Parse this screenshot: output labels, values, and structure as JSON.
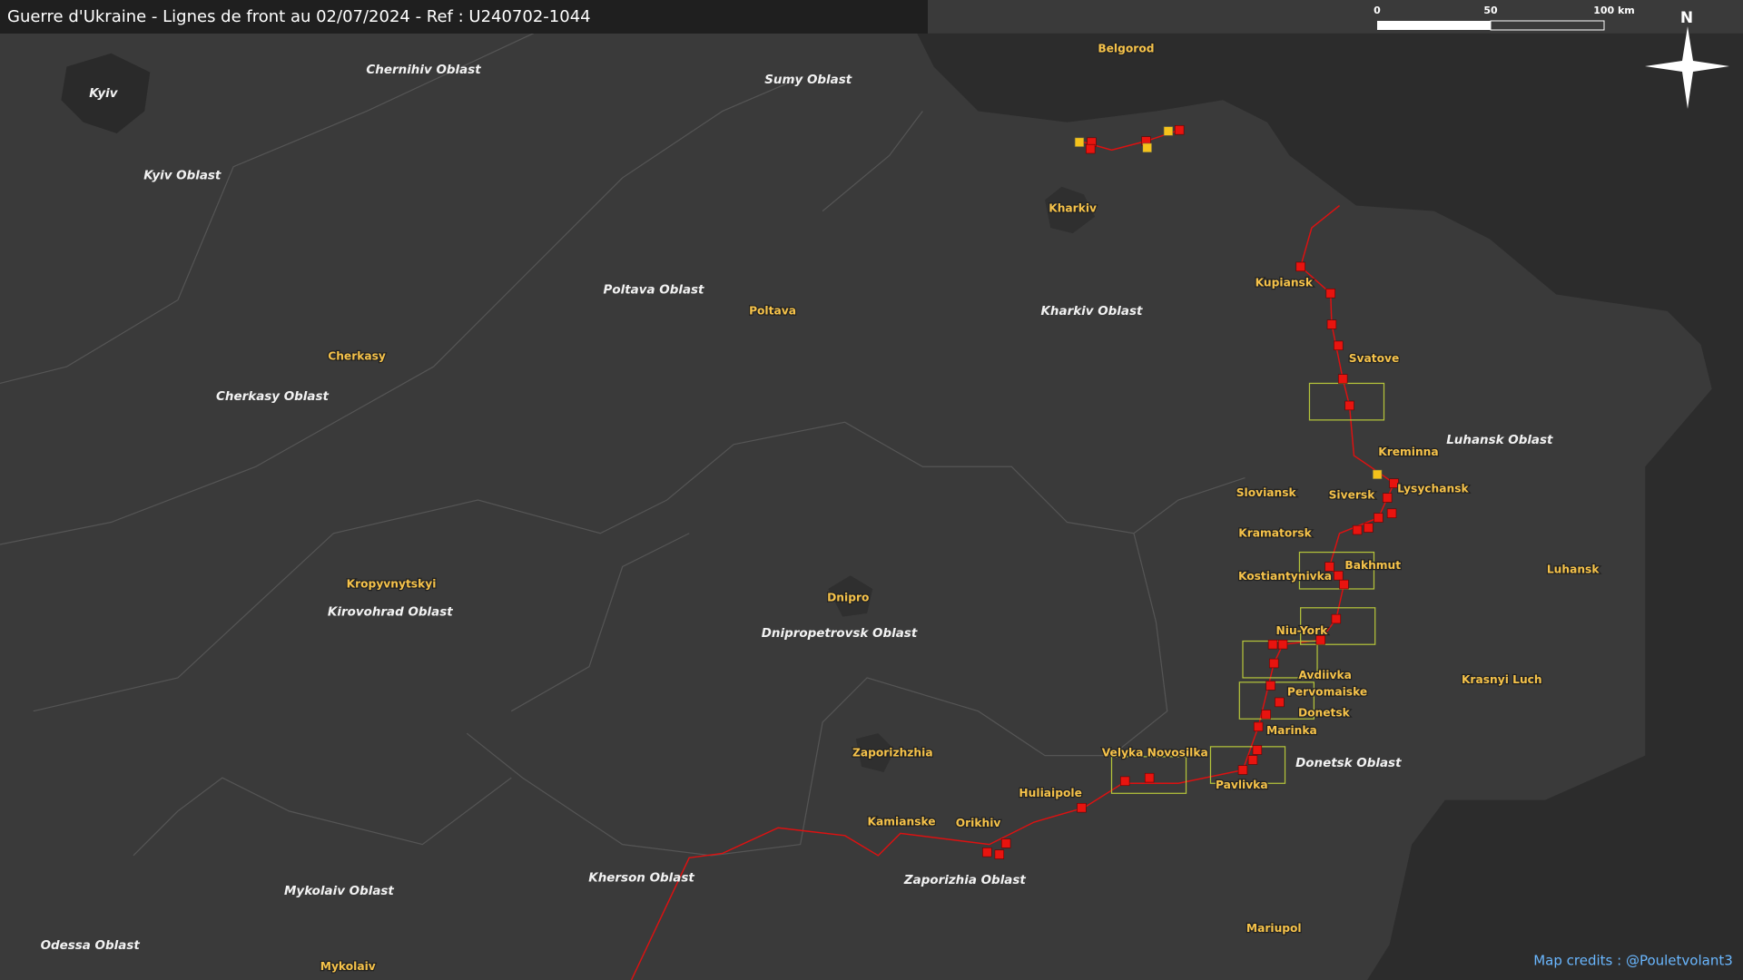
{
  "header": {
    "title": "Guerre d'Ukraine - Lignes de front au 02/07/2024 - Ref : U240702-1044"
  },
  "scale_bar": {
    "labels": [
      "0",
      "50",
      "100 km"
    ]
  },
  "compass": {
    "label": "N"
  },
  "regions": [
    "Chernihiv Oblast",
    "Sumy Oblast",
    "Kyiv Oblast",
    "Poltava Oblast",
    "Kharkiv Oblast",
    "Cherkasy Oblast",
    "Luhansk Oblast",
    "Kirovohrad Oblast",
    "Dnipropetrovsk Oblast",
    "Donetsk Oblast",
    "Kherson Oblast",
    "Zaporizhia Oblast",
    "Mykolaiv Oblast",
    "Odessa Oblast",
    "Kyiv"
  ],
  "cities": [
    "Belgorod",
    "Kharkiv",
    "Kupiansk",
    "Poltava",
    "Svatove",
    "Cherkasy",
    "Kreminna",
    "Sloviansk",
    "Siversk",
    "Lysychansk",
    "Kramatorsk",
    "Bakhmut",
    "Kostiantynivka",
    "Luhansk",
    "Kropyvnytskyi",
    "Dnipro",
    "Niu-York",
    "Avdiivka",
    "Krasnyi Luch",
    "Pervomaiske",
    "Donetsk",
    "Marinka",
    "Zaporizhzhia",
    "Velyka Novosilka",
    "Pavlivka",
    "Huliaipole",
    "Kamianske",
    "Orikhiv",
    "Mariupol",
    "Mykolaiv"
  ],
  "credits": "Map credits : @Pouletvolant3"
}
